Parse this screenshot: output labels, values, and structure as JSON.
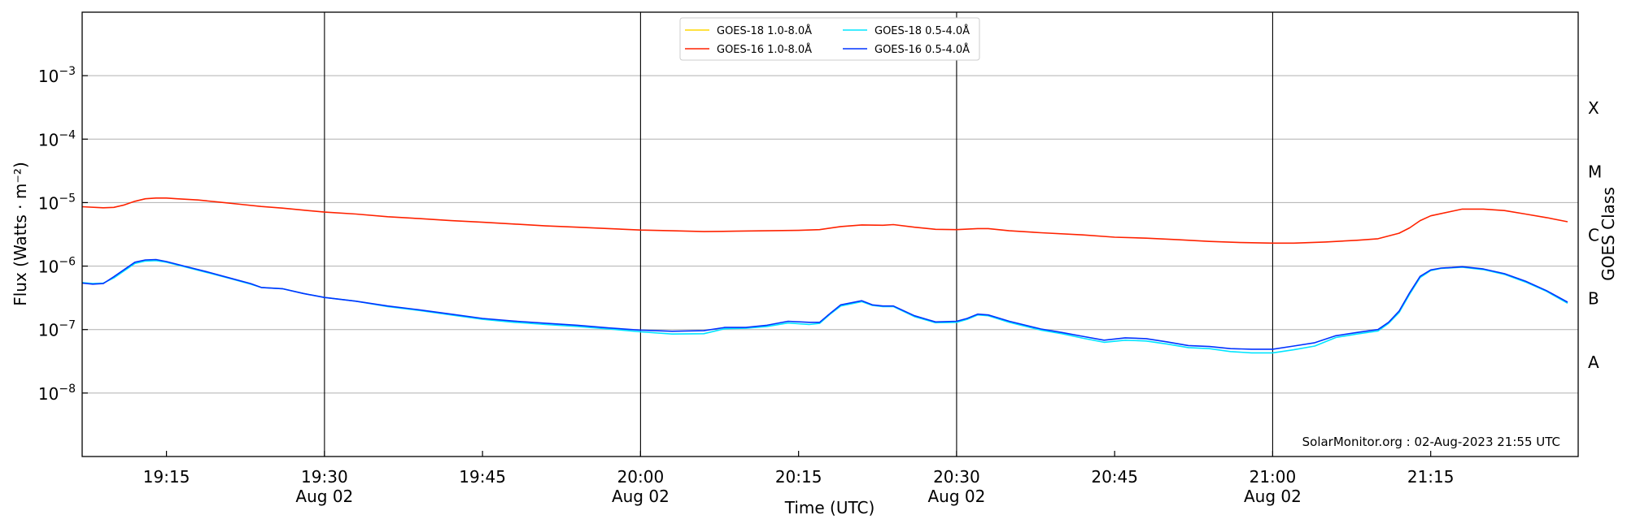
{
  "chart_data": {
    "type": "line",
    "xlabel": "Time (UTC)",
    "ylabel": "Flux (Watts · m⁻²)",
    "ylabel_right": "GOES Class",
    "credit": "SolarMonitor.org : 02-Aug-2023 21:55 UTC",
    "x_range_minutes": [
      "19:07",
      "21:29"
    ],
    "y_scale": "log",
    "ylim": [
      1e-09,
      0.01
    ],
    "grid": "horizontal",
    "legend_position": "top-center",
    "x_ticks": [
      {
        "t": "19:15",
        "label": "19:15",
        "sub": ""
      },
      {
        "t": "19:30",
        "label": "19:30",
        "sub": "Aug 02"
      },
      {
        "t": "19:45",
        "label": "19:45",
        "sub": ""
      },
      {
        "t": "20:00",
        "label": "20:00",
        "sub": "Aug 02"
      },
      {
        "t": "20:15",
        "label": "20:15",
        "sub": ""
      },
      {
        "t": "20:30",
        "label": "20:30",
        "sub": "Aug 02"
      },
      {
        "t": "20:45",
        "label": "20:45",
        "sub": ""
      },
      {
        "t": "21:00",
        "label": "21:00",
        "sub": "Aug 02"
      },
      {
        "t": "21:15",
        "label": "21:15",
        "sub": ""
      }
    ],
    "day_lines": [
      "19:30",
      "20:00",
      "20:30",
      "21:00"
    ],
    "y_ticks": [
      {
        "v": 0.001,
        "base": "10",
        "exp": "−3"
      },
      {
        "v": 0.0001,
        "base": "10",
        "exp": "−4"
      },
      {
        "v": 1e-05,
        "base": "10",
        "exp": "−5"
      },
      {
        "v": 1e-06,
        "base": "10",
        "exp": "−6"
      },
      {
        "v": 1e-07,
        "base": "10",
        "exp": "−7"
      },
      {
        "v": 1e-08,
        "base": "10",
        "exp": "−8"
      }
    ],
    "goes_classes": [
      {
        "label": "X",
        "v": 0.000316
      },
      {
        "label": "M",
        "v": 3.16e-05
      },
      {
        "label": "C",
        "v": 3.16e-06
      },
      {
        "label": "B",
        "v": 3.16e-07
      },
      {
        "label": "A",
        "v": 3.16e-08
      }
    ],
    "series": [
      {
        "name": "GOES-18 1.0-8.0Å",
        "color": "#ffd700",
        "points": []
      },
      {
        "name": "GOES-16 1.0-8.0Å",
        "color": "#ff2200",
        "points": [
          [
            "19:07",
            8.6e-06
          ],
          [
            "19:09",
            8.3e-06
          ],
          [
            "19:10",
            8.4e-06
          ],
          [
            "19:11",
            9.2e-06
          ],
          [
            "19:12",
            1.05e-05
          ],
          [
            "19:13",
            1.15e-05
          ],
          [
            "19:14",
            1.18e-05
          ],
          [
            "19:15",
            1.18e-05
          ],
          [
            "19:16",
            1.15e-05
          ],
          [
            "19:18",
            1.1e-05
          ],
          [
            "19:20",
            1.02e-05
          ],
          [
            "19:22",
            9.4e-06
          ],
          [
            "19:24",
            8.7e-06
          ],
          [
            "19:26",
            8.2e-06
          ],
          [
            "19:28",
            7.6e-06
          ],
          [
            "19:30",
            7.1e-06
          ],
          [
            "19:33",
            6.6e-06
          ],
          [
            "19:36",
            6e-06
          ],
          [
            "19:39",
            5.6e-06
          ],
          [
            "19:42",
            5.2e-06
          ],
          [
            "19:45",
            4.9e-06
          ],
          [
            "19:48",
            4.6e-06
          ],
          [
            "19:51",
            4.3e-06
          ],
          [
            "19:54",
            4.1e-06
          ],
          [
            "19:57",
            3.9e-06
          ],
          [
            "20:00",
            3.7e-06
          ],
          [
            "20:03",
            3.6e-06
          ],
          [
            "20:06",
            3.5e-06
          ],
          [
            "20:09",
            3.55e-06
          ],
          [
            "20:12",
            3.6e-06
          ],
          [
            "20:15",
            3.65e-06
          ],
          [
            "20:17",
            3.75e-06
          ],
          [
            "20:19",
            4.2e-06
          ],
          [
            "20:21",
            4.45e-06
          ],
          [
            "20:23",
            4.4e-06
          ],
          [
            "20:24",
            4.5e-06
          ],
          [
            "20:26",
            4.1e-06
          ],
          [
            "20:28",
            3.8e-06
          ],
          [
            "20:30",
            3.75e-06
          ],
          [
            "20:32",
            3.9e-06
          ],
          [
            "20:33",
            3.9e-06
          ],
          [
            "20:35",
            3.6e-06
          ],
          [
            "20:38",
            3.35e-06
          ],
          [
            "20:42",
            3.1e-06
          ],
          [
            "20:45",
            2.85e-06
          ],
          [
            "20:48",
            2.75e-06
          ],
          [
            "20:51",
            2.6e-06
          ],
          [
            "20:54",
            2.45e-06
          ],
          [
            "20:57",
            2.35e-06
          ],
          [
            "21:00",
            2.3e-06
          ],
          [
            "21:02",
            2.3e-06
          ],
          [
            "21:05",
            2.4e-06
          ],
          [
            "21:08",
            2.55e-06
          ],
          [
            "21:10",
            2.7e-06
          ],
          [
            "21:12",
            3.3e-06
          ],
          [
            "21:13",
            4e-06
          ],
          [
            "21:14",
            5.2e-06
          ],
          [
            "21:15",
            6.2e-06
          ],
          [
            "21:17",
            7.3e-06
          ],
          [
            "21:18",
            7.9e-06
          ],
          [
            "21:20",
            7.9e-06
          ],
          [
            "21:22",
            7.5e-06
          ],
          [
            "21:24",
            6.6e-06
          ],
          [
            "21:26",
            5.8e-06
          ],
          [
            "21:28",
            5e-06
          ]
        ]
      },
      {
        "name": "GOES-18 0.5-4.0Å",
        "color": "#00e5ff",
        "points": [
          [
            "19:07",
            5.5e-07
          ],
          [
            "19:08",
            5.3e-07
          ],
          [
            "19:09",
            5.4e-07
          ],
          [
            "19:10",
            6.5e-07
          ],
          [
            "19:12",
            1.1e-06
          ],
          [
            "19:13",
            1.2e-06
          ],
          [
            "19:14",
            1.22e-06
          ],
          [
            "19:15",
            1.15e-06
          ],
          [
            "19:17",
            9.5e-07
          ],
          [
            "19:19",
            7.8e-07
          ],
          [
            "19:21",
            6.4e-07
          ],
          [
            "19:23",
            5.2e-07
          ],
          [
            "19:24",
            4.6e-07
          ],
          [
            "19:26",
            4.4e-07
          ],
          [
            "19:28",
            3.7e-07
          ],
          [
            "19:30",
            3.2e-07
          ],
          [
            "19:33",
            2.8e-07
          ],
          [
            "19:36",
            2.3e-07
          ],
          [
            "19:39",
            2e-07
          ],
          [
            "19:42",
            1.7e-07
          ],
          [
            "19:45",
            1.45e-07
          ],
          [
            "19:48",
            1.3e-07
          ],
          [
            "19:51",
            1.2e-07
          ],
          [
            "19:54",
            1.12e-07
          ],
          [
            "19:57",
            1.02e-07
          ],
          [
            "20:00",
            9.2e-08
          ],
          [
            "20:03",
            8.5e-08
          ],
          [
            "20:06",
            8.6e-08
          ],
          [
            "20:08",
            1.03e-07
          ],
          [
            "20:10",
            1.05e-07
          ],
          [
            "20:12",
            1.12e-07
          ],
          [
            "20:14",
            1.27e-07
          ],
          [
            "20:16",
            1.2e-07
          ],
          [
            "20:17",
            1.25e-07
          ],
          [
            "20:18",
            1.75e-07
          ],
          [
            "20:19",
            2.35e-07
          ],
          [
            "20:21",
            2.75e-07
          ],
          [
            "20:22",
            2.4e-07
          ],
          [
            "20:23",
            2.3e-07
          ],
          [
            "20:24",
            2.3e-07
          ],
          [
            "20:26",
            1.6e-07
          ],
          [
            "20:28",
            1.28e-07
          ],
          [
            "20:30",
            1.3e-07
          ],
          [
            "20:31",
            1.45e-07
          ],
          [
            "20:32",
            1.7e-07
          ],
          [
            "20:33",
            1.65e-07
          ],
          [
            "20:35",
            1.3e-07
          ],
          [
            "20:38",
            9.8e-08
          ],
          [
            "20:40",
            8.6e-08
          ],
          [
            "20:42",
            7.3e-08
          ],
          [
            "20:44",
            6.3e-08
          ],
          [
            "20:46",
            6.8e-08
          ],
          [
            "20:48",
            6.6e-08
          ],
          [
            "20:50",
            5.9e-08
          ],
          [
            "20:52",
            5.2e-08
          ],
          [
            "20:54",
            5e-08
          ],
          [
            "20:56",
            4.5e-08
          ],
          [
            "20:58",
            4.3e-08
          ],
          [
            "21:00",
            4.3e-08
          ],
          [
            "21:02",
            4.8e-08
          ],
          [
            "21:04",
            5.5e-08
          ],
          [
            "21:06",
            7.5e-08
          ],
          [
            "21:08",
            8.5e-08
          ],
          [
            "21:10",
            9.5e-08
          ],
          [
            "21:11",
            1.25e-07
          ],
          [
            "21:12",
            1.85e-07
          ],
          [
            "21:13",
            3.6e-07
          ],
          [
            "21:14",
            6.6e-07
          ],
          [
            "21:15",
            8.5e-07
          ],
          [
            "21:16",
            9.2e-07
          ],
          [
            "21:17",
            9.4e-07
          ],
          [
            "21:18",
            9.6e-07
          ],
          [
            "21:20",
            8.8e-07
          ],
          [
            "21:22",
            7.4e-07
          ],
          [
            "21:24",
            5.6e-07
          ],
          [
            "21:26",
            4e-07
          ],
          [
            "21:28",
            2.6e-07
          ]
        ]
      },
      {
        "name": "GOES-16 0.5-4.0Å",
        "color": "#0033ff",
        "points": [
          [
            "19:07",
            5.4e-07
          ],
          [
            "19:08",
            5.2e-07
          ],
          [
            "19:09",
            5.3e-07
          ],
          [
            "19:10",
            6.8e-07
          ],
          [
            "19:12",
            1.15e-06
          ],
          [
            "19:13",
            1.25e-06
          ],
          [
            "19:14",
            1.27e-06
          ],
          [
            "19:15",
            1.18e-06
          ],
          [
            "19:17",
            9.7e-07
          ],
          [
            "19:19",
            8e-07
          ],
          [
            "19:21",
            6.5e-07
          ],
          [
            "19:23",
            5.3e-07
          ],
          [
            "19:24",
            4.6e-07
          ],
          [
            "19:26",
            4.4e-07
          ],
          [
            "19:28",
            3.7e-07
          ],
          [
            "19:30",
            3.2e-07
          ],
          [
            "19:33",
            2.8e-07
          ],
          [
            "19:36",
            2.35e-07
          ],
          [
            "19:39",
            2.05e-07
          ],
          [
            "19:42",
            1.75e-07
          ],
          [
            "19:45",
            1.5e-07
          ],
          [
            "19:48",
            1.36e-07
          ],
          [
            "19:51",
            1.26e-07
          ],
          [
            "19:54",
            1.17e-07
          ],
          [
            "19:57",
            1.06e-07
          ],
          [
            "20:00",
            9.8e-08
          ],
          [
            "20:03",
            9.4e-08
          ],
          [
            "20:06",
            9.6e-08
          ],
          [
            "20:08",
            1.08e-07
          ],
          [
            "20:10",
            1.08e-07
          ],
          [
            "20:12",
            1.17e-07
          ],
          [
            "20:14",
            1.35e-07
          ],
          [
            "20:16",
            1.3e-07
          ],
          [
            "20:17",
            1.3e-07
          ],
          [
            "20:18",
            1.8e-07
          ],
          [
            "20:19",
            2.45e-07
          ],
          [
            "20:21",
            2.85e-07
          ],
          [
            "20:22",
            2.45e-07
          ],
          [
            "20:23",
            2.35e-07
          ],
          [
            "20:24",
            2.35e-07
          ],
          [
            "20:26",
            1.65e-07
          ],
          [
            "20:28",
            1.32e-07
          ],
          [
            "20:30",
            1.35e-07
          ],
          [
            "20:31",
            1.5e-07
          ],
          [
            "20:32",
            1.75e-07
          ],
          [
            "20:33",
            1.7e-07
          ],
          [
            "20:35",
            1.35e-07
          ],
          [
            "20:38",
            1.02e-07
          ],
          [
            "20:40",
            9e-08
          ],
          [
            "20:42",
            7.8e-08
          ],
          [
            "20:44",
            6.8e-08
          ],
          [
            "20:46",
            7.4e-08
          ],
          [
            "20:48",
            7.2e-08
          ],
          [
            "20:50",
            6.4e-08
          ],
          [
            "20:52",
            5.6e-08
          ],
          [
            "20:54",
            5.4e-08
          ],
          [
            "20:56",
            5e-08
          ],
          [
            "20:58",
            4.9e-08
          ],
          [
            "21:00",
            4.9e-08
          ],
          [
            "21:02",
            5.5e-08
          ],
          [
            "21:04",
            6.2e-08
          ],
          [
            "21:06",
            8e-08
          ],
          [
            "21:08",
            9e-08
          ],
          [
            "21:10",
            1e-07
          ],
          [
            "21:11",
            1.3e-07
          ],
          [
            "21:12",
            1.95e-07
          ],
          [
            "21:13",
            3.8e-07
          ],
          [
            "21:14",
            6.9e-07
          ],
          [
            "21:15",
            8.7e-07
          ],
          [
            "21:16",
            9.3e-07
          ],
          [
            "21:17",
            9.5e-07
          ],
          [
            "21:18",
            9.8e-07
          ],
          [
            "21:20",
            9e-07
          ],
          [
            "21:22",
            7.6e-07
          ],
          [
            "21:24",
            5.8e-07
          ],
          [
            "21:26",
            4.1e-07
          ],
          [
            "21:28",
            2.7e-07
          ]
        ]
      }
    ]
  }
}
